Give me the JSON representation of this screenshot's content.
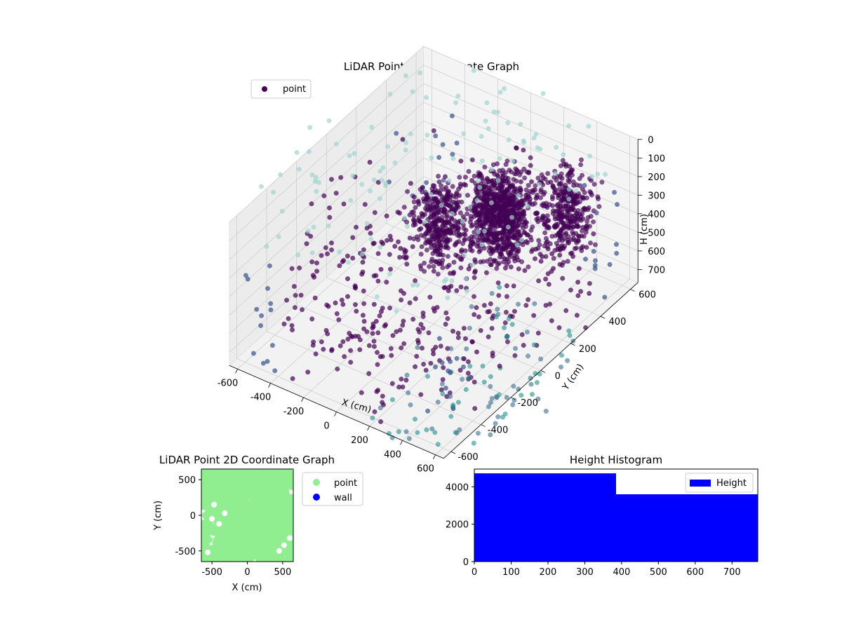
{
  "chart_data": [
    {
      "type": "scatter",
      "projection": "3d",
      "title": "LiDAR Point 3D Coordinate Graph",
      "xlabel": "X (cm)",
      "ylabel": "Y (cm)",
      "zlabel": "H (cm)",
      "xlim": [
        -650,
        650
      ],
      "ylim": [
        -650,
        650
      ],
      "zlim": [
        0,
        770
      ],
      "z_axis_inverted": true,
      "x_ticks": [
        -600,
        -400,
        -200,
        0,
        200,
        400,
        600
      ],
      "y_ticks": [
        -600,
        -400,
        -200,
        0,
        200,
        400,
        600
      ],
      "z_ticks": [
        0,
        100,
        200,
        300,
        400,
        500,
        600,
        700
      ],
      "colormap": "viridis (color by distance, dark purple near → light teal far)",
      "colors": [
        "#440154",
        "#3b528b",
        "#21918c",
        "#5ec962",
        "#9fd4d2"
      ],
      "legend": {
        "placement": "upper-left",
        "entries": [
          {
            "name": "point",
            "color": "#440154"
          }
        ]
      },
      "series": [
        {
          "name": "point",
          "description_values": {
            "dense_cluster_center_xy": [
              [
                -50,
                100
              ],
              [
                100,
                300
              ],
              [
                200,
                250
              ],
              [
                400,
                450
              ]
            ],
            "dense_cluster_height_range": [
              150,
              500
            ]
          }
        }
      ]
    },
    {
      "type": "scatter",
      "title": "LiDAR Point 2D Coordinate Graph",
      "xlabel": "X (cm)",
      "ylabel": "Y (cm)",
      "xlim": [
        -650,
        650
      ],
      "ylim": [
        -650,
        650
      ],
      "x_ticks": [
        -500,
        0,
        500
      ],
      "y_ticks": [
        -500,
        0,
        500
      ],
      "legend": {
        "placement": "outside-right",
        "entries": [
          {
            "name": "point",
            "color": "#90ee90"
          },
          {
            "name": "wall",
            "color": "#0000ff"
          }
        ]
      },
      "series": [
        {
          "name": "point",
          "color": "#90ee90",
          "coverage": "dense fill nearly whole area"
        },
        {
          "name": "wall",
          "color": "#0000ff",
          "values": []
        }
      ]
    },
    {
      "type": "bar",
      "title": "Height Histogram",
      "xlim": [
        0,
        770
      ],
      "ylim": [
        0,
        4950
      ],
      "x_ticks": [
        0,
        100,
        200,
        300,
        400,
        500,
        600,
        700
      ],
      "y_ticks": [
        0,
        2000,
        4000
      ],
      "legend": {
        "placement": "upper-right",
        "entries": [
          {
            "name": "Height",
            "color": "#0000ff"
          }
        ]
      },
      "bins": [
        {
          "x0": 0,
          "x1": 385,
          "count": 4720
        },
        {
          "x0": 385,
          "x1": 770,
          "count": 3600
        }
      ],
      "color": "#0000ff"
    }
  ]
}
